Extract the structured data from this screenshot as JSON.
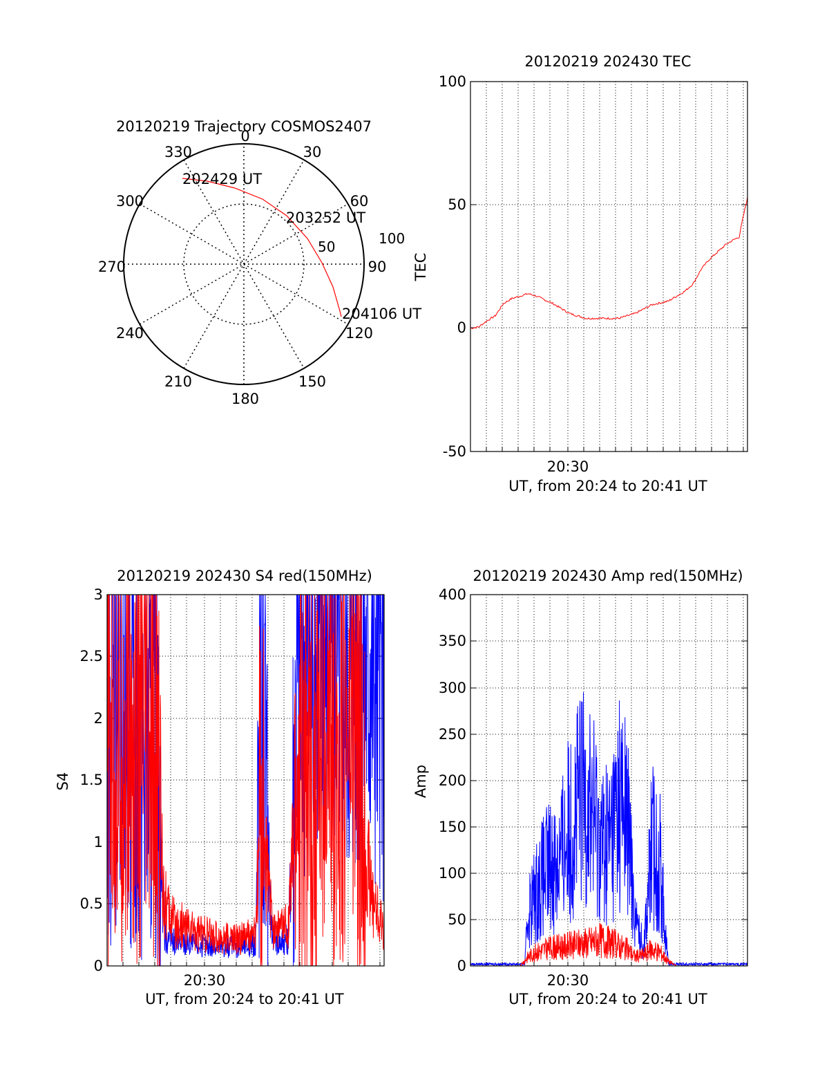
{
  "colors": {
    "red": "#ff0000",
    "blue": "#0000ff",
    "axis": "#000000",
    "grid": "#000000"
  },
  "polar": {
    "title": "20120219 Trajectory COSMOS2407",
    "azimuth_labels": [
      "0",
      "30",
      "60",
      "90",
      "120",
      "150",
      "180",
      "210",
      "240",
      "270",
      "300",
      "330"
    ],
    "radial_labels": [
      "50",
      "100"
    ],
    "start_label": "202429 UT",
    "mid_label": "203252 UT",
    "end_label": "204106 UT"
  },
  "chart_data": [
    {
      "id": "tec",
      "type": "line",
      "title": "20120219 202430 TEC",
      "ylabel": "TEC",
      "xlabel": "UT, from 20:24 to 20:41 UT",
      "xtick_label": "20:30",
      "ylim": [
        -50,
        100
      ],
      "yticks": [
        "-50",
        "0",
        "50",
        "100"
      ],
      "x_range_min": [
        0,
        16.8
      ],
      "grid": true,
      "series": [
        {
          "color": "red",
          "x": [
            0,
            0.5,
            1,
            1.5,
            2,
            2.5,
            3,
            3.5,
            4,
            5,
            6,
            7,
            8,
            9,
            10,
            11,
            12,
            12.5,
            13,
            13.5,
            14,
            14.5,
            15,
            15.5,
            16,
            16.3,
            16.5,
            16.8
          ],
          "y": [
            0,
            0.5,
            3,
            5,
            10,
            12,
            13,
            14,
            13,
            10,
            6,
            4,
            4,
            4,
            6,
            9.5,
            11,
            13,
            15,
            18,
            24,
            28,
            31,
            34,
            36,
            37,
            44,
            53
          ]
        }
      ]
    },
    {
      "id": "s4",
      "type": "line",
      "title": "20120219 202430 S4 red(150MHz)",
      "ylabel": "S4",
      "xlabel": "UT, from 20:24 to 20:41 UT",
      "xtick_label": "20:30",
      "ylim": [
        0,
        3
      ],
      "yticks": [
        "0",
        "0.5",
        "1",
        "1.5",
        "2",
        "2.5",
        "3"
      ],
      "x_range_min": [
        0,
        16.8
      ],
      "grid": true,
      "series": [
        {
          "color": "blue",
          "x": [
            0,
            1,
            2,
            3,
            3.5,
            4,
            5,
            6,
            7,
            8,
            9,
            9.3,
            9.5,
            10,
            10.5,
            11,
            11.5,
            12,
            12.2,
            12.5,
            13,
            14,
            15,
            16,
            16.8
          ],
          "y": [
            1.8,
            1.9,
            1.8,
            1.7,
            0.25,
            0.2,
            0.18,
            0.16,
            0.15,
            0.16,
            0.18,
            2.2,
            1.8,
            0.25,
            0.2,
            0.22,
            2.3,
            2.5,
            2.4,
            2.6,
            2.7,
            2.6,
            2.4,
            2.5,
            2.3
          ]
        },
        {
          "color": "red",
          "x": [
            0,
            1,
            2,
            3,
            3.5,
            4,
            5,
            6,
            7,
            8,
            9,
            9.3,
            9.5,
            10,
            10.5,
            11,
            11.5,
            12,
            12.2,
            12.5,
            13,
            14,
            15,
            15.5,
            16,
            16.5,
            16.8
          ],
          "y": [
            1.7,
            1.8,
            1.7,
            1.6,
            0.5,
            0.35,
            0.3,
            0.25,
            0.22,
            0.22,
            0.25,
            1.2,
            1.0,
            0.35,
            0.3,
            0.35,
            1.4,
            1.6,
            1.5,
            1.6,
            1.7,
            1.8,
            1.9,
            1.2,
            0.6,
            0.4,
            0.3
          ]
        }
      ]
    },
    {
      "id": "amp",
      "type": "line",
      "title": "20120219 202430 Amp red(150MHz)",
      "ylabel": "Amp",
      "xlabel": "UT, from 20:24 to 20:41 UT",
      "xtick_label": "20:30",
      "ylim": [
        0,
        400
      ],
      "yticks": [
        "0",
        "50",
        "100",
        "150",
        "200",
        "250",
        "300",
        "350",
        "400"
      ],
      "x_range_min": [
        0,
        16.8
      ],
      "grid": true,
      "series": [
        {
          "color": "blue",
          "x": [
            0,
            3,
            3.3,
            3.5,
            4,
            4.5,
            5,
            5.5,
            6,
            6.5,
            7,
            7.5,
            8,
            8.5,
            9,
            9.5,
            10,
            10.5,
            11,
            11.5,
            11.8,
            12,
            12.5,
            13,
            16.8
          ],
          "y": [
            2,
            2,
            2,
            60,
            80,
            100,
            110,
            120,
            150,
            170,
            190,
            160,
            130,
            140,
            180,
            160,
            50,
            20,
            130,
            110,
            40,
            2,
            2,
            2,
            2
          ]
        },
        {
          "color": "red",
          "x": [
            0,
            3,
            3.5,
            4,
            5,
            6,
            7,
            8,
            8.5,
            9,
            9.5,
            10,
            10.5,
            11,
            11.5,
            12,
            12.5,
            16.8
          ],
          "y": [
            0,
            0,
            10,
            15,
            20,
            22,
            25,
            28,
            25,
            22,
            18,
            10,
            12,
            18,
            15,
            5,
            0,
            0
          ]
        }
      ]
    }
  ]
}
